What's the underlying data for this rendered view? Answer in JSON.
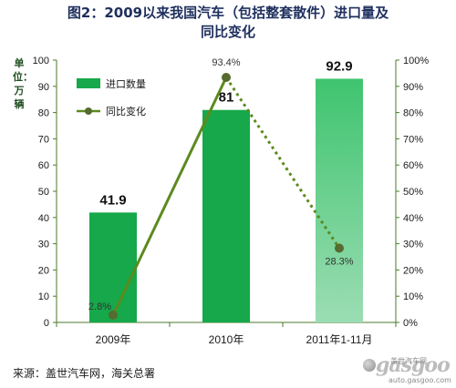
{
  "title_line1": "图2：2009以来我国汽车（包括整套散件）进口量及",
  "title_line2": "同比变化",
  "unit_label": "单位：万辆",
  "source": "来源：盖世汽车网，海关总署",
  "logo": {
    "brand": "gasgoo",
    "cn": "盖世汽车网",
    "url": "auto.gasgoo.com"
  },
  "colors": {
    "bar_dark": "#16a84a",
    "bar_light": "#9bddb3",
    "line": "#5c8a1e",
    "marker": "#556b2f"
  },
  "chart_data": {
    "type": "bar+line",
    "categories": [
      "2009年",
      "2010年",
      "2011年1-11月"
    ],
    "series": [
      {
        "name": "进口数量",
        "type": "bar",
        "axis": "left",
        "values": [
          41.9,
          81,
          92.9
        ],
        "labels": [
          "41.9",
          "81",
          "92.9"
        ]
      },
      {
        "name": "同比变化",
        "type": "line",
        "axis": "right",
        "values": [
          2.8,
          93.4,
          28.3
        ],
        "labels": [
          "2.8%",
          "93.4%",
          "28.3%"
        ]
      }
    ],
    "left_axis": {
      "min": 0,
      "max": 100,
      "ticks": [
        "0",
        "10",
        "20",
        "30",
        "40",
        "50",
        "60",
        "70",
        "80",
        "90",
        "100"
      ]
    },
    "right_axis": {
      "min": 0,
      "max": 100,
      "ticks": [
        "0%",
        "10%",
        "20%",
        "30%",
        "40%",
        "50%",
        "60%",
        "70%",
        "80%",
        "90%",
        "100%"
      ]
    },
    "legend": {
      "position": "top-left",
      "items": [
        {
          "label": "进口数量",
          "kind": "bar"
        },
        {
          "label": "同比变化",
          "kind": "line"
        }
      ]
    },
    "grid": false
  }
}
